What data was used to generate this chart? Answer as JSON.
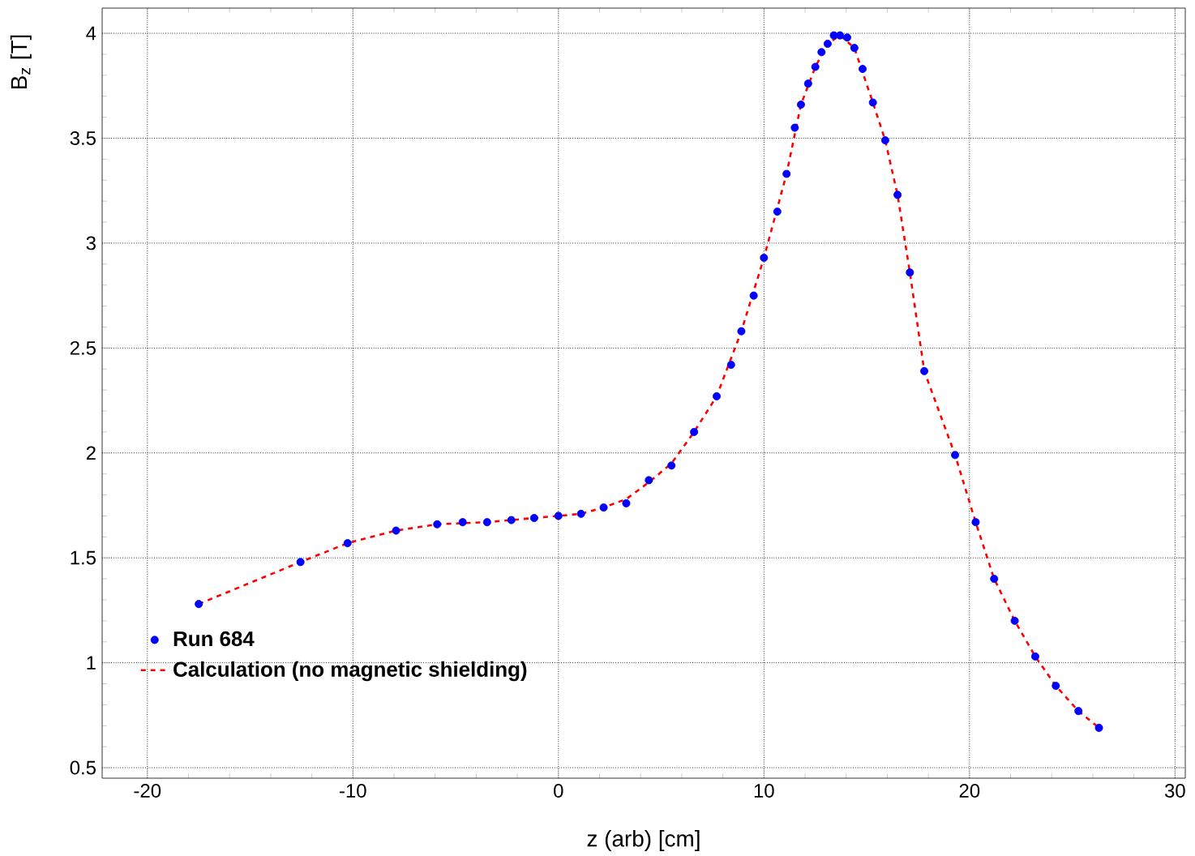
{
  "chart_data": {
    "type": "scatter",
    "xlabel": "z (arb) [cm]",
    "ylabel": "B$_{z}$ [T]",
    "xlim": [
      -22.2,
      30.5
    ],
    "ylim": [
      0.45,
      4.12
    ],
    "xticks": [
      -20,
      -10,
      0,
      10,
      20,
      30
    ],
    "yticks": [
      0.5,
      1,
      1.5,
      2,
      2.5,
      3,
      3.5,
      4
    ],
    "grid": true,
    "legend": "bottom left",
    "series": [
      {
        "name": "Run 684",
        "marker": "circle",
        "color": "#0000ff",
        "x": [
          -17.5,
          -12.55,
          -10.26,
          -7.9,
          -5.9,
          -4.66,
          -3.47,
          -2.29,
          -1.18,
          0,
          1.1,
          2.2,
          3.3,
          4.4,
          5.5,
          6.6,
          7.7,
          8.4,
          8.9,
          9.5,
          10.0,
          10.65,
          11.1,
          11.5,
          11.8,
          12.15,
          12.5,
          12.8,
          13.1,
          13.4,
          13.7,
          14.05,
          14.4,
          14.8,
          15.3,
          15.9,
          16.5,
          17.1,
          17.8,
          19.3,
          20.3,
          21.2,
          22.2,
          23.2,
          24.2,
          25.3,
          26.3
        ],
        "values": [
          1.28,
          1.48,
          1.57,
          1.63,
          1.66,
          1.67,
          1.67,
          1.68,
          1.69,
          1.7,
          1.71,
          1.74,
          1.76,
          1.87,
          1.94,
          2.1,
          2.27,
          2.42,
          2.58,
          2.75,
          2.93,
          3.15,
          3.33,
          3.55,
          3.66,
          3.76,
          3.84,
          3.91,
          3.95,
          3.99,
          3.99,
          3.98,
          3.93,
          3.83,
          3.67,
          3.49,
          3.23,
          2.86,
          2.39,
          1.99,
          1.67,
          1.4,
          1.2,
          1.03,
          0.89,
          0.77,
          0.69
        ]
      },
      {
        "name": "Calculation (no magnetic shielding)",
        "type": "line",
        "line_style": "dashed",
        "marker": "none",
        "color": "#ff0000",
        "x": [
          -17.5,
          -12.55,
          -10.26,
          -7.9,
          -5.9,
          -3.47,
          -1.18,
          0,
          1.1,
          2.2,
          3.3,
          4.4,
          5.5,
          6.6,
          7.7,
          8.9,
          10.0,
          11.1,
          11.8,
          12.5,
          13.1,
          13.7,
          14.4,
          15.3,
          15.9,
          16.5,
          17.1,
          17.8,
          19.3,
          20.3,
          21.2,
          22.2,
          23.2,
          24.2,
          25.3,
          26.3
        ],
        "values": [
          1.28,
          1.48,
          1.57,
          1.63,
          1.66,
          1.67,
          1.69,
          1.7,
          1.71,
          1.74,
          1.78,
          1.86,
          1.95,
          2.1,
          2.27,
          2.58,
          2.93,
          3.33,
          3.66,
          3.84,
          3.95,
          3.99,
          3.93,
          3.67,
          3.49,
          3.23,
          2.86,
          2.39,
          1.99,
          1.67,
          1.4,
          1.2,
          1.03,
          0.89,
          0.77,
          0.69
        ]
      }
    ]
  }
}
